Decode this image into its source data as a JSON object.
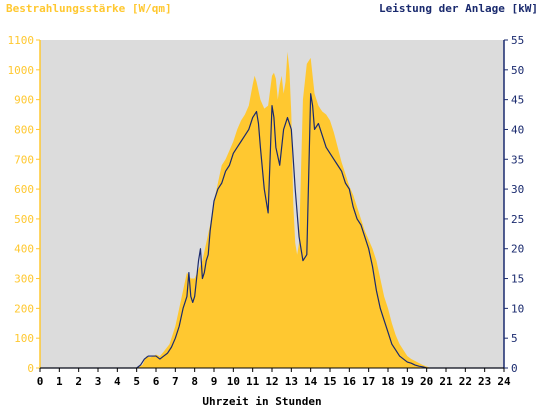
{
  "chart_data": {
    "type": "area",
    "title_left": "Bestrahlungsstärke [W/qm]",
    "title_right": "Leistung der Anlage [kW]",
    "xlabel": "Uhrzeit in Stunden",
    "x_ticks": [
      "0",
      "1",
      "2",
      "3",
      "4",
      "5",
      "6",
      "7",
      "8",
      "9",
      "10",
      "11",
      "12",
      "13",
      "14",
      "15",
      "16",
      "17",
      "18",
      "19",
      "20",
      "21",
      "22",
      "23",
      "24"
    ],
    "xlim": [
      0,
      24
    ],
    "y_left": {
      "ticks": [
        "0",
        "100",
        "200",
        "300",
        "400",
        "500",
        "600",
        "700",
        "800",
        "900",
        "1000",
        "1100"
      ],
      "lim": [
        0,
        1100
      ]
    },
    "y_right": {
      "ticks": [
        "0",
        "5",
        "10",
        "15",
        "20",
        "25",
        "30",
        "35",
        "40",
        "45",
        "50",
        "55"
      ],
      "lim": [
        0,
        55
      ]
    },
    "grid": false,
    "colors": {
      "plot_background": "#dcdcdc",
      "left_axis": "#ffc830",
      "right_axis": "#1a2a6e",
      "irradiance_fill": "#ffc830",
      "power_line": "#1a2a6e",
      "xlabel": "#000000"
    },
    "series": [
      {
        "axis": "left",
        "style": "area",
        "x": [
          0,
          5.0,
          5.1,
          5.3,
          5.5,
          5.7,
          6.0,
          6.2,
          6.4,
          6.7,
          7.0,
          7.2,
          7.4,
          7.6,
          7.8,
          8.0,
          8.2,
          8.4,
          8.6,
          8.8,
          9.0,
          9.2,
          9.4,
          9.6,
          9.8,
          10.0,
          10.2,
          10.4,
          10.6,
          10.8,
          11.0,
          11.1,
          11.2,
          11.4,
          11.6,
          11.8,
          12.0,
          12.1,
          12.2,
          12.3,
          12.4,
          12.5,
          12.6,
          12.7,
          12.8,
          12.9,
          13.0,
          13.1,
          13.2,
          13.3,
          13.4,
          13.6,
          13.8,
          14.0,
          14.1,
          14.2,
          14.3,
          14.4,
          14.5,
          14.6,
          14.8,
          15.0,
          15.2,
          15.4,
          15.6,
          15.8,
          16.0,
          16.2,
          16.4,
          16.6,
          16.8,
          17.0,
          17.2,
          17.4,
          17.6,
          17.8,
          18.0,
          18.2,
          18.4,
          18.6,
          18.8,
          19.0,
          19.2,
          19.5,
          19.8,
          20.0,
          20.2,
          21,
          24
        ],
        "values": [
          0,
          0,
          5,
          10,
          40,
          35,
          45,
          40,
          55,
          80,
          140,
          200,
          260,
          320,
          300,
          300,
          330,
          360,
          420,
          480,
          560,
          620,
          680,
          700,
          730,
          760,
          800,
          830,
          850,
          880,
          950,
          980,
          960,
          900,
          870,
          880,
          980,
          990,
          970,
          900,
          950,
          980,
          920,
          960,
          1060,
          1000,
          850,
          550,
          420,
          380,
          420,
          900,
          1020,
          1040,
          980,
          920,
          900,
          880,
          870,
          860,
          850,
          830,
          790,
          740,
          690,
          650,
          610,
          580,
          540,
          500,
          460,
          430,
          400,
          360,
          300,
          240,
          200,
          150,
          110,
          80,
          60,
          40,
          30,
          20,
          10,
          5,
          0,
          0,
          0
        ]
      },
      {
        "axis": "right",
        "style": "line",
        "x": [
          0,
          5.0,
          5.2,
          5.4,
          5.6,
          5.8,
          6.0,
          6.2,
          6.4,
          6.6,
          6.8,
          7.0,
          7.2,
          7.4,
          7.5,
          7.6,
          7.7,
          7.8,
          7.9,
          8.0,
          8.1,
          8.2,
          8.3,
          8.4,
          8.5,
          8.6,
          8.7,
          8.8,
          9.0,
          9.2,
          9.4,
          9.6,
          9.8,
          10.0,
          10.2,
          10.4,
          10.6,
          10.8,
          11.0,
          11.2,
          11.3,
          11.4,
          11.6,
          11.8,
          12.0,
          12.1,
          12.2,
          12.4,
          12.6,
          12.8,
          13.0,
          13.2,
          13.4,
          13.6,
          13.8,
          14.0,
          14.1,
          14.2,
          14.4,
          14.6,
          14.8,
          15.0,
          15.2,
          15.4,
          15.6,
          15.8,
          16.0,
          16.2,
          16.4,
          16.6,
          16.8,
          17.0,
          17.2,
          17.4,
          17.6,
          17.8,
          18.0,
          18.2,
          18.4,
          18.6,
          18.8,
          19.0,
          19.2,
          19.4,
          19.6,
          19.8,
          20.0,
          20.3,
          21,
          24
        ],
        "values": [
          0,
          0,
          0.5,
          1.5,
          2,
          2,
          2,
          1.5,
          2,
          2.5,
          3.5,
          5,
          7,
          10,
          11,
          12,
          16,
          12,
          11,
          12,
          15,
          18,
          20,
          15,
          16,
          18,
          19,
          23,
          28,
          30,
          31,
          33,
          34,
          36,
          37,
          38,
          39,
          40,
          42,
          43,
          41,
          37,
          30,
          26,
          44,
          42,
          37,
          34,
          40,
          42,
          40,
          30,
          22,
          18,
          19,
          46,
          44,
          40,
          41,
          39,
          37,
          36,
          35,
          34,
          33,
          31,
          30,
          27,
          25,
          24,
          22,
          20,
          17,
          13,
          10,
          8,
          6,
          4,
          3,
          2,
          1.5,
          1,
          0.8,
          0.5,
          0.3,
          0.2,
          0,
          0,
          0,
          0
        ]
      }
    ]
  }
}
